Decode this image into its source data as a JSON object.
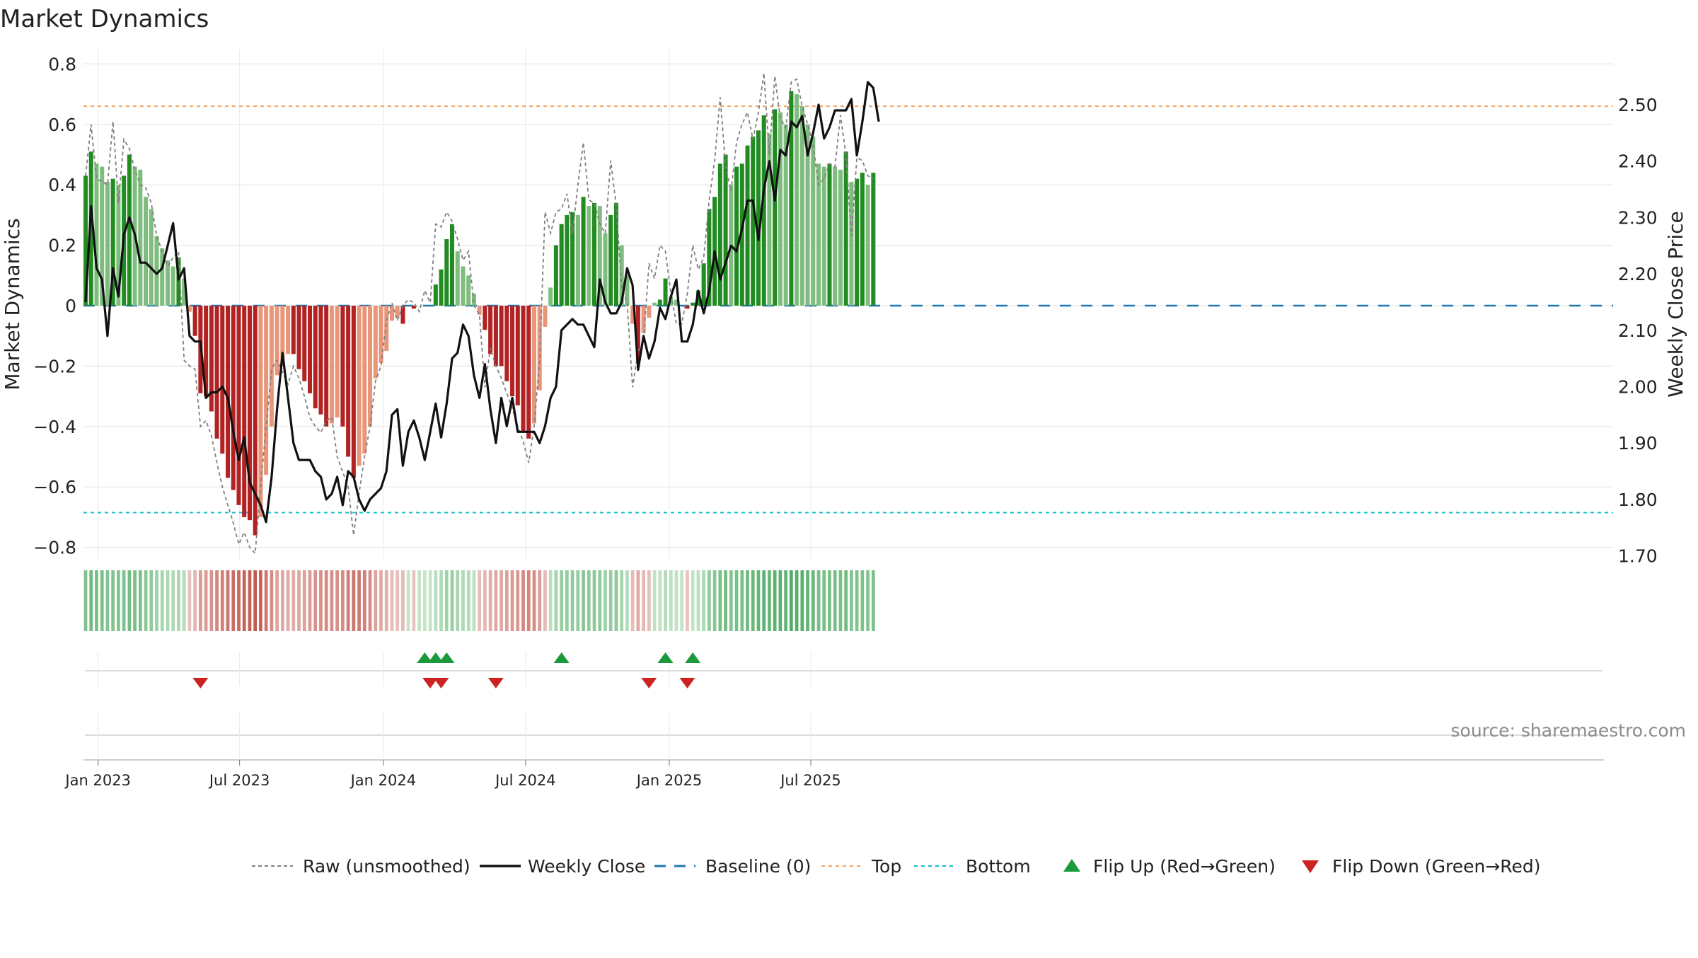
{
  "chart_data": {
    "type": "bar",
    "title": "Market Dynamics",
    "source": "source: sharemaestro.com",
    "left_axis": {
      "label": "Market Dynamics",
      "ylim": [
        -0.85,
        0.8
      ],
      "ticks": [
        0.8,
        0.6,
        0.4,
        0.2,
        0,
        -0.2,
        -0.4,
        -0.6,
        -0.8
      ],
      "tick_labels": [
        "0.8",
        "0.6",
        "0.4",
        "0.2",
        "0",
        "−0.2",
        "−0.4",
        "−0.6",
        "−0.8"
      ]
    },
    "right_axis": {
      "label": "Weekly Close Price",
      "ylim": [
        1.69,
        2.56
      ],
      "ticks": [
        2.5,
        2.4,
        2.3,
        2.2,
        2.1,
        2.0,
        1.9,
        1.8,
        1.7
      ],
      "tick_labels": [
        "2.50",
        "2.40",
        "2.30",
        "2.20",
        "2.10",
        "2.00",
        "1.90",
        "1.80",
        "1.70"
      ]
    },
    "x_axis": {
      "start": "2022-12-16",
      "end": "2025-10-10",
      "ticks": [
        "2023-01-01",
        "2023-07-01",
        "2024-01-01",
        "2024-07-01",
        "2025-01-01",
        "2025-07-01"
      ],
      "tick_labels": [
        "Jan 2023",
        "Jul 2023",
        "Jan 2024",
        "Jul 2024",
        "Jan 2025",
        "Jul 2025"
      ]
    },
    "first_week": "2022-12-16",
    "week_step_days": 7,
    "reference_lines": {
      "top": 0.66,
      "bottom": -0.685,
      "baseline": 0
    },
    "bars": [
      0.43,
      0.51,
      0.47,
      0.46,
      0.41,
      0.42,
      0.4,
      0.43,
      0.5,
      0.46,
      0.45,
      0.36,
      0.32,
      0.23,
      0.19,
      0.15,
      0.13,
      0.16,
      0.09,
      -0.02,
      -0.1,
      -0.29,
      -0.3,
      -0.35,
      -0.44,
      -0.49,
      -0.57,
      -0.61,
      -0.66,
      -0.7,
      -0.71,
      -0.76,
      -0.7,
      -0.56,
      -0.4,
      -0.23,
      -0.2,
      -0.16,
      -0.16,
      -0.21,
      -0.25,
      -0.29,
      -0.34,
      -0.36,
      -0.4,
      -0.39,
      -0.37,
      -0.4,
      -0.5,
      -0.57,
      -0.53,
      -0.49,
      -0.4,
      -0.24,
      -0.19,
      -0.15,
      -0.05,
      -0.04,
      -0.06,
      0.0,
      -0.01,
      0.0,
      0.0,
      0.0,
      0.07,
      0.12,
      0.22,
      0.27,
      0.18,
      0.13,
      0.1,
      0.04,
      -0.03,
      -0.08,
      -0.16,
      -0.2,
      -0.2,
      -0.25,
      -0.3,
      -0.33,
      -0.42,
      -0.44,
      -0.39,
      -0.28,
      -0.07,
      0.06,
      0.2,
      0.27,
      0.3,
      0.31,
      0.3,
      0.36,
      0.33,
      0.34,
      0.33,
      0.24,
      0.3,
      0.34,
      0.2,
      0.1,
      -0.06,
      -0.19,
      -0.09,
      -0.04,
      0.01,
      0.02,
      0.09,
      0.03,
      0.02,
      0.0,
      -0.01,
      0.01,
      0.05,
      0.14,
      0.32,
      0.36,
      0.47,
      0.5,
      0.4,
      0.46,
      0.47,
      0.53,
      0.56,
      0.58,
      0.63,
      0.57,
      0.65,
      0.64,
      0.6,
      0.71,
      0.7,
      0.66,
      0.6,
      0.56,
      0.47,
      0.46,
      0.47,
      0.46,
      0.45,
      0.51,
      0.41,
      0.42,
      0.44,
      0.4,
      0.44
    ],
    "raw_values": [
      0.43,
      0.6,
      0.42,
      0.41,
      0.4,
      0.61,
      0.34,
      0.55,
      0.52,
      0.45,
      0.4,
      0.39,
      0.34,
      0.23,
      0.18,
      0.13,
      0.16,
      0.18,
      -0.18,
      -0.2,
      -0.21,
      -0.4,
      -0.38,
      -0.43,
      -0.52,
      -0.6,
      -0.66,
      -0.72,
      -0.79,
      -0.75,
      -0.8,
      -0.82,
      -0.6,
      -0.4,
      -0.21,
      -0.18,
      -0.22,
      -0.26,
      -0.2,
      -0.24,
      -0.3,
      -0.37,
      -0.4,
      -0.42,
      -0.38,
      -0.37,
      -0.5,
      -0.55,
      -0.6,
      -0.76,
      -0.62,
      -0.5,
      -0.4,
      -0.25,
      -0.2,
      -0.05,
      0.01,
      -0.05,
      0.0,
      0.02,
      0.01,
      -0.02,
      0.05,
      0.01,
      0.27,
      0.26,
      0.31,
      0.28,
      0.22,
      0.15,
      0.18,
      0.0,
      -0.03,
      -0.27,
      -0.14,
      -0.2,
      -0.24,
      -0.29,
      -0.34,
      -0.4,
      -0.45,
      -0.52,
      -0.4,
      -0.18,
      0.31,
      0.24,
      0.31,
      0.32,
      0.37,
      0.24,
      0.4,
      0.54,
      0.35,
      0.34,
      0.27,
      0.24,
      0.48,
      0.33,
      0.06,
      0.01,
      -0.27,
      -0.15,
      -0.12,
      0.14,
      0.09,
      0.2,
      0.18,
      0.04,
      -0.06,
      -0.06,
      0.04,
      0.2,
      0.12,
      0.16,
      0.35,
      0.48,
      0.69,
      0.46,
      0.38,
      0.54,
      0.6,
      0.64,
      0.55,
      0.64,
      0.77,
      0.5,
      0.76,
      0.62,
      0.59,
      0.74,
      0.75,
      0.66,
      0.6,
      0.53,
      0.4,
      0.42,
      0.47,
      0.46,
      0.63,
      0.5,
      0.23,
      0.49,
      0.48,
      0.43,
      0.42
    ],
    "close_prices": [
      2.15,
      2.32,
      2.21,
      2.19,
      2.09,
      2.21,
      2.16,
      2.27,
      2.3,
      2.27,
      2.22,
      2.22,
      2.21,
      2.2,
      2.21,
      2.25,
      2.29,
      2.19,
      2.21,
      2.09,
      2.08,
      2.08,
      1.98,
      1.99,
      1.99,
      2.0,
      1.98,
      1.92,
      1.87,
      1.91,
      1.83,
      1.81,
      1.79,
      1.76,
      1.84,
      1.96,
      2.06,
      1.98,
      1.9,
      1.87,
      1.87,
      1.87,
      1.85,
      1.84,
      1.8,
      1.81,
      1.84,
      1.79,
      1.85,
      1.84,
      1.8,
      1.78,
      1.8,
      1.81,
      1.82,
      1.85,
      1.95,
      1.96,
      1.86,
      1.92,
      1.94,
      1.91,
      1.87,
      1.92,
      1.97,
      1.91,
      1.97,
      2.05,
      2.06,
      2.11,
      2.09,
      2.02,
      1.98,
      2.04,
      1.96,
      1.9,
      1.98,
      1.93,
      1.98,
      1.92,
      1.92,
      1.92,
      1.92,
      1.9,
      1.93,
      1.98,
      2.0,
      2.1,
      2.11,
      2.12,
      2.11,
      2.11,
      2.09,
      2.07,
      2.19,
      2.15,
      2.13,
      2.13,
      2.15,
      2.21,
      2.18,
      2.03,
      2.09,
      2.05,
      2.08,
      2.14,
      2.12,
      2.16,
      2.19,
      2.08,
      2.08,
      2.11,
      2.17,
      2.13,
      2.17,
      2.24,
      2.19,
      2.22,
      2.25,
      2.24,
      2.28,
      2.33,
      2.33,
      2.26,
      2.35,
      2.4,
      2.33,
      2.42,
      2.41,
      2.47,
      2.46,
      2.48,
      2.41,
      2.45,
      2.5,
      2.44,
      2.46,
      2.49,
      2.49,
      2.49,
      2.51,
      2.41,
      2.47,
      2.54,
      2.53,
      2.47
    ],
    "flip_up_dates": [
      "2024-02-23",
      "2024-03-08",
      "2024-03-22",
      "2024-08-16",
      "2024-12-27",
      "2025-01-31"
    ],
    "flip_down_dates": [
      "2023-05-12",
      "2024-03-01",
      "2024-03-15",
      "2024-05-24",
      "2024-12-06",
      "2025-01-24"
    ],
    "regime_strip": "weekly band of pale-to-saturated green (positive) and red (negative) blocks, intensity follows |bar value|",
    "legend": {
      "position": "bottom-center",
      "entries": [
        {
          "label": "Raw (unsmoothed)",
          "style": "dashed-gray"
        },
        {
          "label": "Weekly Close",
          "style": "solid-black"
        },
        {
          "label": "Baseline (0)",
          "style": "dashed-blue"
        },
        {
          "label": "Top",
          "style": "dotted-orange"
        },
        {
          "label": "Bottom",
          "style": "dotted-cyan"
        },
        {
          "label": "Flip Up (Red→Green)",
          "style": "triangle-up-green"
        },
        {
          "label": "Flip Down (Green→Red)",
          "style": "triangle-down-red"
        }
      ]
    },
    "colors": {
      "strong_positive": "#228b22",
      "weak_positive": "#7ebd7e",
      "strong_negative": "#b22222",
      "weak_negative": "#e8967a",
      "top_line": "#f4a460",
      "bottom_line": "#17becf",
      "baseline": "#1f77b4",
      "close_line": "#111111",
      "raw_line": "#808080",
      "flip_up": "#1a9a3a",
      "flip_down": "#cc2222"
    },
    "grid": true
  }
}
